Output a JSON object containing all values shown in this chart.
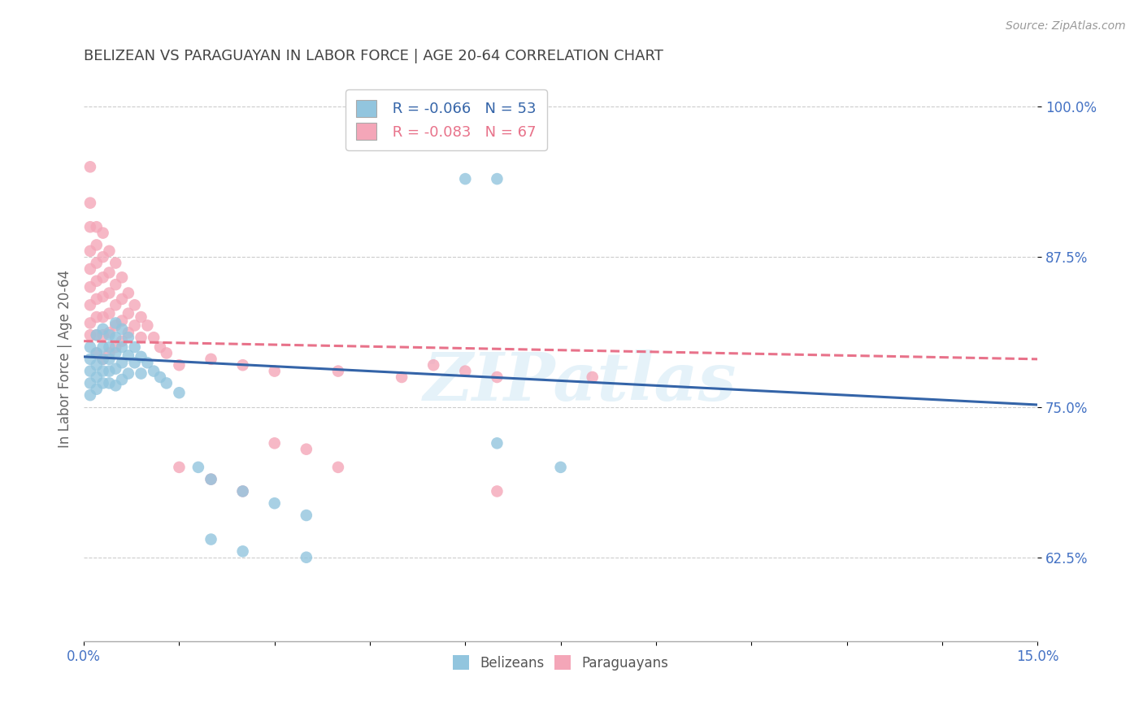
{
  "title": "BELIZEAN VS PARAGUAYAN IN LABOR FORCE | AGE 20-64 CORRELATION CHART",
  "source": "Source: ZipAtlas.com",
  "xlabel": "",
  "ylabel": "In Labor Force | Age 20-64",
  "xlim": [
    0.0,
    0.15
  ],
  "ylim": [
    0.555,
    1.025
  ],
  "yticks": [
    0.625,
    0.75,
    0.875,
    1.0
  ],
  "yticklabels": [
    "62.5%",
    "75.0%",
    "87.5%",
    "100.0%"
  ],
  "belizean_color": "#92c5de",
  "paraguayan_color": "#f4a6b8",
  "belizean_line_color": "#3464a8",
  "paraguayan_line_color": "#e8728a",
  "r_belizean": -0.066,
  "n_belizean": 53,
  "r_paraguayan": -0.083,
  "n_paraguayan": 67,
  "watermark": "ZIPatlas",
  "background_color": "#ffffff",
  "grid_color": "#cccccc",
  "title_color": "#444444",
  "axis_label_color": "#666666",
  "tick_label_color": "#4472c4",
  "belizean_trendline": [
    0.0,
    0.792,
    0.15,
    0.752
  ],
  "paraguayan_trendline": [
    0.0,
    0.805,
    0.15,
    0.79
  ],
  "belizean_scatter": [
    [
      0.001,
      0.8
    ],
    [
      0.001,
      0.79
    ],
    [
      0.001,
      0.78
    ],
    [
      0.001,
      0.77
    ],
    [
      0.001,
      0.76
    ],
    [
      0.002,
      0.81
    ],
    [
      0.002,
      0.795
    ],
    [
      0.002,
      0.785
    ],
    [
      0.002,
      0.775
    ],
    [
      0.002,
      0.765
    ],
    [
      0.003,
      0.815
    ],
    [
      0.003,
      0.8
    ],
    [
      0.003,
      0.79
    ],
    [
      0.003,
      0.78
    ],
    [
      0.003,
      0.77
    ],
    [
      0.004,
      0.81
    ],
    [
      0.004,
      0.8
    ],
    [
      0.004,
      0.79
    ],
    [
      0.004,
      0.78
    ],
    [
      0.004,
      0.77
    ],
    [
      0.005,
      0.82
    ],
    [
      0.005,
      0.808
    ],
    [
      0.005,
      0.795
    ],
    [
      0.005,
      0.782
    ],
    [
      0.005,
      0.768
    ],
    [
      0.006,
      0.815
    ],
    [
      0.006,
      0.8
    ],
    [
      0.006,
      0.787
    ],
    [
      0.006,
      0.773
    ],
    [
      0.007,
      0.808
    ],
    [
      0.007,
      0.793
    ],
    [
      0.007,
      0.778
    ],
    [
      0.008,
      0.8
    ],
    [
      0.008,
      0.787
    ],
    [
      0.009,
      0.792
    ],
    [
      0.009,
      0.778
    ],
    [
      0.01,
      0.787
    ],
    [
      0.011,
      0.78
    ],
    [
      0.012,
      0.775
    ],
    [
      0.013,
      0.77
    ],
    [
      0.015,
      0.762
    ],
    [
      0.018,
      0.7
    ],
    [
      0.02,
      0.69
    ],
    [
      0.025,
      0.68
    ],
    [
      0.03,
      0.67
    ],
    [
      0.035,
      0.66
    ],
    [
      0.06,
      0.94
    ],
    [
      0.065,
      0.94
    ],
    [
      0.065,
      0.72
    ],
    [
      0.075,
      0.7
    ],
    [
      0.02,
      0.64
    ],
    [
      0.025,
      0.63
    ],
    [
      0.035,
      0.625
    ]
  ],
  "paraguayan_scatter": [
    [
      0.001,
      0.95
    ],
    [
      0.001,
      0.92
    ],
    [
      0.001,
      0.9
    ],
    [
      0.001,
      0.88
    ],
    [
      0.001,
      0.865
    ],
    [
      0.001,
      0.85
    ],
    [
      0.001,
      0.835
    ],
    [
      0.001,
      0.82
    ],
    [
      0.001,
      0.81
    ],
    [
      0.002,
      0.9
    ],
    [
      0.002,
      0.885
    ],
    [
      0.002,
      0.87
    ],
    [
      0.002,
      0.855
    ],
    [
      0.002,
      0.84
    ],
    [
      0.002,
      0.825
    ],
    [
      0.002,
      0.81
    ],
    [
      0.002,
      0.795
    ],
    [
      0.003,
      0.895
    ],
    [
      0.003,
      0.875
    ],
    [
      0.003,
      0.858
    ],
    [
      0.003,
      0.842
    ],
    [
      0.003,
      0.825
    ],
    [
      0.003,
      0.81
    ],
    [
      0.003,
      0.79
    ],
    [
      0.004,
      0.88
    ],
    [
      0.004,
      0.862
    ],
    [
      0.004,
      0.845
    ],
    [
      0.004,
      0.828
    ],
    [
      0.004,
      0.812
    ],
    [
      0.004,
      0.795
    ],
    [
      0.005,
      0.87
    ],
    [
      0.005,
      0.852
    ],
    [
      0.005,
      0.835
    ],
    [
      0.005,
      0.818
    ],
    [
      0.005,
      0.8
    ],
    [
      0.006,
      0.858
    ],
    [
      0.006,
      0.84
    ],
    [
      0.006,
      0.822
    ],
    [
      0.006,
      0.805
    ],
    [
      0.007,
      0.845
    ],
    [
      0.007,
      0.828
    ],
    [
      0.007,
      0.812
    ],
    [
      0.008,
      0.835
    ],
    [
      0.008,
      0.818
    ],
    [
      0.009,
      0.825
    ],
    [
      0.009,
      0.808
    ],
    [
      0.01,
      0.818
    ],
    [
      0.011,
      0.808
    ],
    [
      0.012,
      0.8
    ],
    [
      0.013,
      0.795
    ],
    [
      0.015,
      0.785
    ],
    [
      0.02,
      0.79
    ],
    [
      0.025,
      0.785
    ],
    [
      0.03,
      0.78
    ],
    [
      0.03,
      0.72
    ],
    [
      0.035,
      0.715
    ],
    [
      0.04,
      0.7
    ],
    [
      0.04,
      0.78
    ],
    [
      0.05,
      0.775
    ],
    [
      0.055,
      0.785
    ],
    [
      0.06,
      0.78
    ],
    [
      0.065,
      0.775
    ],
    [
      0.08,
      0.775
    ],
    [
      0.015,
      0.7
    ],
    [
      0.02,
      0.69
    ],
    [
      0.025,
      0.68
    ],
    [
      0.065,
      0.68
    ]
  ]
}
